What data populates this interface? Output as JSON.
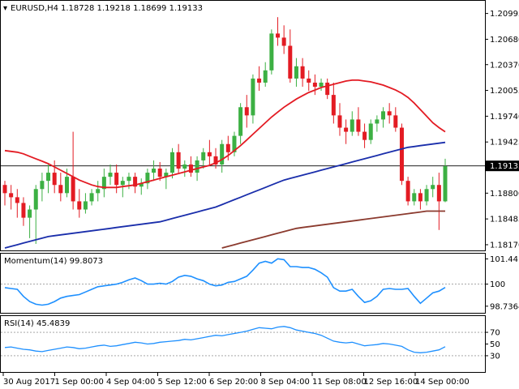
{
  "header": {
    "symbol": "EURUSD,H4",
    "ohlc": "1.18728 1.19218 1.18699 1.19133"
  },
  "colors": {
    "bull": "#3cb043",
    "bear": "#e31b23",
    "sma20": "#e31b23",
    "sma100": "#1a2eab",
    "sma200": "#8b3a2e",
    "indicator": "#1e90ff",
    "grid": "#9a9a9a"
  },
  "chart_data": [
    {
      "type": "candlestick",
      "name": "price",
      "yticks": [
        "1.20995",
        "1.20680",
        "1.20370",
        "1.20055",
        "1.19740",
        "1.19425",
        "1.18800",
        "1.18485",
        "1.18170"
      ],
      "ylim": [
        1.1813,
        1.2112
      ],
      "current_price": "1.19133",
      "current_price_value": 1.19133,
      "candles": [
        [
          1.189,
          1.1895,
          1.1865,
          1.188
        ],
        [
          1.188,
          1.189,
          1.186,
          1.1875
        ],
        [
          1.1875,
          1.1885,
          1.185,
          1.1868
        ],
        [
          1.1868,
          1.1875,
          1.184,
          1.185
        ],
        [
          1.185,
          1.1865,
          1.1825,
          1.186
        ],
        [
          1.186,
          1.189,
          1.1818,
          1.1885
        ],
        [
          1.1885,
          1.1905,
          1.187,
          1.1895
        ],
        [
          1.1895,
          1.1915,
          1.188,
          1.1905
        ],
        [
          1.1905,
          1.192,
          1.188,
          1.189
        ],
        [
          1.189,
          1.1905,
          1.187,
          1.188
        ],
        [
          1.188,
          1.191,
          1.1875,
          1.19
        ],
        [
          1.19,
          1.1955,
          1.186,
          1.187
        ],
        [
          1.187,
          1.1885,
          1.185,
          1.186
        ],
        [
          1.186,
          1.188,
          1.1855,
          1.187
        ],
        [
          1.187,
          1.1885,
          1.1865,
          1.188
        ],
        [
          1.188,
          1.1895,
          1.187,
          1.1885
        ],
        [
          1.1885,
          1.191,
          1.1875,
          1.19
        ],
        [
          1.19,
          1.1915,
          1.189,
          1.1905
        ],
        [
          1.1905,
          1.1915,
          1.188,
          1.189
        ],
        [
          1.189,
          1.19,
          1.1875,
          1.1895
        ],
        [
          1.1895,
          1.1905,
          1.1885,
          1.19
        ],
        [
          1.19,
          1.1905,
          1.188,
          1.1888
        ],
        [
          1.1888,
          1.1898,
          1.1878,
          1.1892
        ],
        [
          1.1892,
          1.191,
          1.1885,
          1.1905
        ],
        [
          1.1905,
          1.192,
          1.1895,
          1.191
        ],
        [
          1.191,
          1.1918,
          1.1895,
          1.19
        ],
        [
          1.19,
          1.191,
          1.1885,
          1.1905
        ],
        [
          1.1905,
          1.1935,
          1.1898,
          1.193
        ],
        [
          1.193,
          1.194,
          1.1905,
          1.191
        ],
        [
          1.191,
          1.192,
          1.19,
          1.1915
        ],
        [
          1.1915,
          1.1925,
          1.19,
          1.1905
        ],
        [
          1.1905,
          1.1925,
          1.1895,
          1.192
        ],
        [
          1.192,
          1.1935,
          1.191,
          1.193
        ],
        [
          1.193,
          1.1945,
          1.1915,
          1.1925
        ],
        [
          1.1925,
          1.1935,
          1.191,
          1.1915
        ],
        [
          1.1915,
          1.1945,
          1.1905,
          1.194
        ],
        [
          1.194,
          1.195,
          1.192,
          1.193
        ],
        [
          1.193,
          1.1955,
          1.1925,
          1.195
        ],
        [
          1.195,
          1.199,
          1.194,
          1.1985
        ],
        [
          1.1985,
          1.2,
          1.196,
          1.1975
        ],
        [
          1.1975,
          1.2025,
          1.1965,
          1.202
        ],
        [
          1.202,
          1.2035,
          1.2005,
          1.2015
        ],
        [
          1.2015,
          1.204,
          1.201,
          1.203
        ],
        [
          1.203,
          1.208,
          1.2025,
          1.2075
        ],
        [
          1.2075,
          1.2095,
          1.206,
          1.207
        ],
        [
          1.207,
          1.2085,
          1.205,
          1.206
        ],
        [
          1.206,
          1.208,
          1.2015,
          1.202
        ],
        [
          1.202,
          1.2045,
          1.201,
          1.2035
        ],
        [
          1.2035,
          1.2045,
          1.201,
          1.202
        ],
        [
          1.202,
          1.203,
          1.2005,
          1.2015
        ],
        [
          1.2015,
          1.2025,
          1.2,
          1.201
        ],
        [
          1.201,
          1.202,
          1.2005,
          1.2015
        ],
        [
          1.2015,
          1.202,
          1.1995,
          1.2
        ],
        [
          1.2,
          1.2015,
          1.1965,
          1.1975
        ],
        [
          1.1975,
          1.199,
          1.195,
          1.196
        ],
        [
          1.196,
          1.197,
          1.194,
          1.1955
        ],
        [
          1.1955,
          1.198,
          1.195,
          1.197
        ],
        [
          1.197,
          1.1985,
          1.195,
          1.1955
        ],
        [
          1.1955,
          1.1965,
          1.1935,
          1.1945
        ],
        [
          1.1945,
          1.197,
          1.194,
          1.1965
        ],
        [
          1.1965,
          1.1975,
          1.1955,
          1.197
        ],
        [
          1.197,
          1.1985,
          1.196,
          1.198
        ],
        [
          1.198,
          1.199,
          1.1965,
          1.1975
        ],
        [
          1.1975,
          1.1985,
          1.1955,
          1.196
        ],
        [
          1.196,
          1.1965,
          1.189,
          1.1895
        ],
        [
          1.1895,
          1.19,
          1.1865,
          1.187
        ],
        [
          1.187,
          1.1885,
          1.1865,
          1.188
        ],
        [
          1.188,
          1.1885,
          1.186,
          1.187
        ],
        [
          1.187,
          1.189,
          1.1865,
          1.1885
        ],
        [
          1.1885,
          1.19,
          1.1875,
          1.189
        ],
        [
          1.189,
          1.1905,
          1.1835,
          1.187
        ],
        [
          1.187,
          1.1922,
          1.1869,
          1.1913
        ]
      ],
      "series": [
        {
          "type": "line",
          "values": [
            1.1932,
            1.1931,
            1.193,
            1.1928,
            1.1925,
            1.1922,
            1.1919,
            1.1916,
            1.1912,
            1.1908,
            1.1904,
            1.19,
            1.1896,
            1.1893,
            1.189,
            1.1888,
            1.1887,
            1.1887,
            1.1887,
            1.1888,
            1.1889,
            1.189,
            1.1892,
            1.1894,
            1.1896,
            1.1898,
            1.19,
            1.1902,
            1.1904,
            1.1906,
            1.1908,
            1.191,
            1.1912,
            1.1914,
            1.1917,
            1.1921,
            1.1926,
            1.1932,
            1.1938,
            1.1945,
            1.1952,
            1.1959,
            1.1966,
            1.1973,
            1.1979,
            1.1985,
            1.199,
            1.1995,
            1.1999,
            1.2003,
            1.2006,
            1.2009,
            1.2011,
            1.2013,
            1.2015,
            1.2017,
            1.2018,
            1.2018,
            1.2017,
            1.2016,
            1.2014,
            1.2012,
            1.2009,
            1.2006,
            1.2002,
            1.1997,
            1.199,
            1.1982,
            1.1974,
            1.1966,
            1.196,
            1.1955
          ]
        },
        {
          "type": "line",
          "values": [
            1.1813,
            1.1815,
            1.1817,
            1.1819,
            1.1821,
            1.1823,
            1.1825,
            1.1827,
            1.1828,
            1.1829,
            1.183,
            1.1831,
            1.1832,
            1.1833,
            1.1834,
            1.1835,
            1.1836,
            1.1837,
            1.1838,
            1.1839,
            1.184,
            1.1841,
            1.1842,
            1.1843,
            1.1844,
            1.1845,
            1.1847,
            1.1849,
            1.1851,
            1.1853,
            1.1855,
            1.1857,
            1.1859,
            1.1861,
            1.1863,
            1.1866,
            1.1869,
            1.1872,
            1.1875,
            1.1878,
            1.1881,
            1.1884,
            1.1887,
            1.189,
            1.1893,
            1.1896,
            1.1898,
            1.19,
            1.1902,
            1.1904,
            1.1906,
            1.1908,
            1.191,
            1.1912,
            1.1914,
            1.1916,
            1.1918,
            1.192,
            1.1922,
            1.1924,
            1.1926,
            1.1928,
            1.193,
            1.1932,
            1.1934,
            1.1936,
            1.1937,
            1.1938,
            1.1939,
            1.194,
            1.1941,
            1.1942
          ]
        },
        {
          "type": "line",
          "values": [
            null,
            null,
            null,
            null,
            null,
            null,
            null,
            null,
            null,
            null,
            null,
            null,
            null,
            null,
            null,
            null,
            null,
            null,
            null,
            null,
            null,
            null,
            null,
            null,
            null,
            null,
            null,
            null,
            null,
            null,
            null,
            null,
            null,
            null,
            null,
            1.1813,
            1.1815,
            1.1817,
            1.1819,
            1.1821,
            1.1823,
            1.1825,
            1.1827,
            1.1829,
            1.1831,
            1.1833,
            1.1835,
            1.1837,
            1.1838,
            1.1839,
            1.184,
            1.1841,
            1.1842,
            1.1843,
            1.1844,
            1.1845,
            1.1846,
            1.1847,
            1.1848,
            1.1849,
            1.185,
            1.1851,
            1.1852,
            1.1853,
            1.1854,
            1.1855,
            1.1856,
            1.1857,
            1.1858,
            1.1858,
            1.1858,
            1.1858
          ]
        }
      ]
    },
    {
      "type": "line",
      "name": "momentum",
      "label": "Momentum(14) 99.8073",
      "yticks": [
        "101.4419",
        "100",
        "98.7364"
      ],
      "ylim": [
        98.45,
        101.65
      ],
      "reference_level": 100,
      "values": [
        99.8,
        99.75,
        99.7,
        99.3,
        99.0,
        98.85,
        98.8,
        98.85,
        99.0,
        99.2,
        99.3,
        99.35,
        99.4,
        99.55,
        99.7,
        99.85,
        99.9,
        99.95,
        100.0,
        100.1,
        100.25,
        100.35,
        100.2,
        100.0,
        100.0,
        100.05,
        100.0,
        100.15,
        100.4,
        100.5,
        100.45,
        100.3,
        100.2,
        100.0,
        99.9,
        99.95,
        100.1,
        100.15,
        100.3,
        100.45,
        100.8,
        101.2,
        101.3,
        101.2,
        101.45,
        101.4,
        101.0,
        101.0,
        100.95,
        100.95,
        100.85,
        100.65,
        100.4,
        99.8,
        99.6,
        99.6,
        99.7,
        99.3,
        98.95,
        99.05,
        99.3,
        99.7,
        99.75,
        99.7,
        99.7,
        99.75,
        99.3,
        98.9,
        99.2,
        99.5,
        99.6,
        99.8073
      ]
    },
    {
      "type": "line",
      "name": "rsi",
      "label": "RSI(14) 45.4839",
      "yticks": [
        "70",
        "50",
        "30"
      ],
      "ylim": [
        5,
        95
      ],
      "reference_levels": [
        70,
        30
      ],
      "values": [
        44,
        45,
        43,
        41,
        40,
        38,
        37,
        39,
        41,
        43,
        45,
        44,
        42,
        43,
        45,
        47,
        48,
        46,
        47,
        49,
        51,
        53,
        52,
        50,
        51,
        53,
        54,
        55,
        56,
        58,
        57,
        59,
        61,
        63,
        65,
        64,
        66,
        68,
        70,
        72,
        75,
        78,
        77,
        76,
        79,
        80,
        78,
        74,
        72,
        70,
        68,
        65,
        60,
        55,
        53,
        52,
        53,
        50,
        47,
        48,
        49,
        51,
        50,
        48,
        46,
        40,
        36,
        35,
        36,
        38,
        40,
        45.4839
      ]
    }
  ],
  "xaxis": {
    "labels": [
      "30 Aug 2017",
      "1 Sep 00:00",
      "4 Sep 04:00",
      "5 Sep 12:00",
      "6 Sep 20:00",
      "8 Sep 04:00",
      "11 Sep 08:00",
      "12 Sep 16:00",
      "14 Sep 00:00"
    ]
  }
}
